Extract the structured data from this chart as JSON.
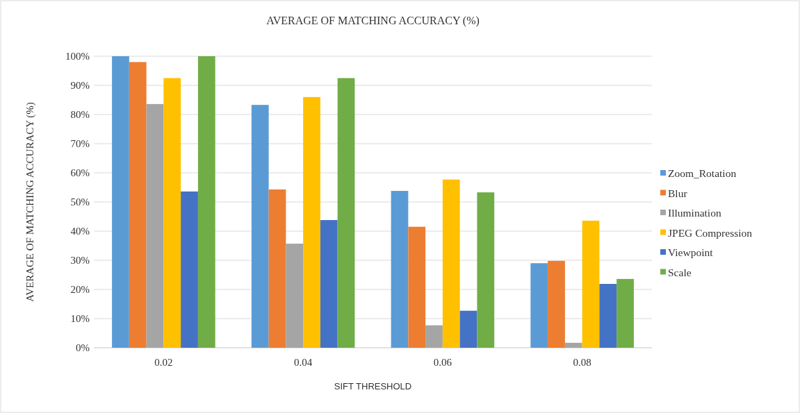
{
  "chart_data": {
    "type": "bar",
    "title": "AVERAGE  OF MATCHING  ACCURACY  (%)",
    "xlabel": "SIFT THRESHOLD",
    "ylabel": "AVERAGE OF MATCHING ACCURACY (%)",
    "categories": [
      "0.02",
      "0.04",
      "0.06",
      "0.08"
    ],
    "series": [
      {
        "name": "Zoom_Rotation",
        "color": "#5b9bd5",
        "values": [
          100,
          83.3,
          53.8,
          29
        ]
      },
      {
        "name": "Blur",
        "color": "#ed7d31",
        "values": [
          98,
          54.3,
          41.5,
          29.8
        ]
      },
      {
        "name": "Illumination",
        "color": "#a5a5a5",
        "values": [
          83.6,
          35.7,
          7.7,
          1.7
        ]
      },
      {
        "name": "JPEG Compression",
        "color": "#ffc000",
        "values": [
          92.5,
          86,
          57.7,
          43.6
        ]
      },
      {
        "name": "Viewpoint",
        "color": "#4472c4",
        "values": [
          53.6,
          43.8,
          12.7,
          21.9
        ]
      },
      {
        "name": "Scale",
        "color": "#70ad47",
        "values": [
          100,
          92.5,
          53.3,
          23.6
        ]
      }
    ],
    "ylim": [
      0,
      100
    ],
    "yticks": [
      {
        "value": 0,
        "label": "0%"
      },
      {
        "value": 10,
        "label": "10%"
      },
      {
        "value": 20,
        "label": "20%"
      },
      {
        "value": 30,
        "label": "30%"
      },
      {
        "value": 40,
        "label": "40%"
      },
      {
        "value": 50,
        "label": "50%"
      },
      {
        "value": 60,
        "label": "60%"
      },
      {
        "value": 70,
        "label": "70%"
      },
      {
        "value": 80,
        "label": "80%"
      },
      {
        "value": 90,
        "label": "90%"
      },
      {
        "value": 100,
        "label": "100%"
      }
    ],
    "grid": "y",
    "legend": "right"
  }
}
